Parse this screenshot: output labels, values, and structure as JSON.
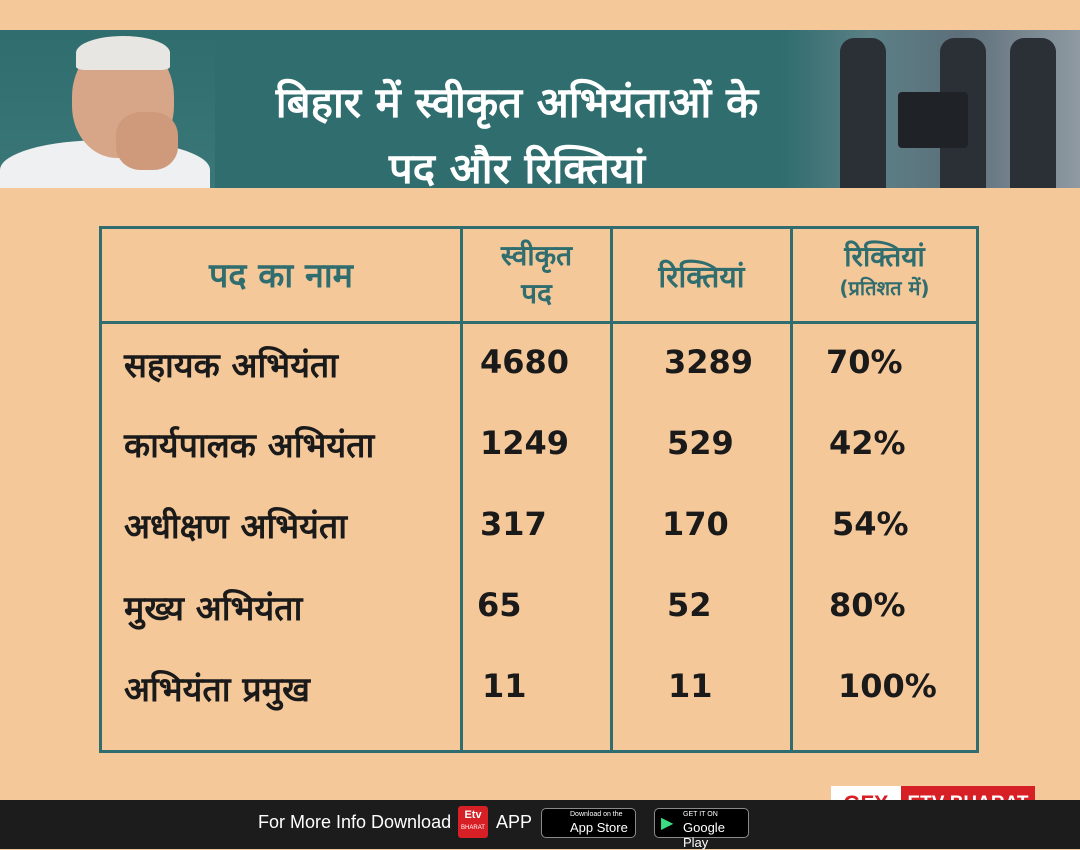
{
  "title": {
    "line1": "बिहार में स्वीकृत अभियंताओं के",
    "line2": "पद और रिक्तियां"
  },
  "table": {
    "headers": {
      "post_name": "पद का नाम",
      "sanctioned_line1": "स्वीकृत",
      "sanctioned_line2": "पद",
      "vacancies": "रिक्तियां",
      "vacancy_pct_line1": "रिक्तियां",
      "vacancy_pct_line2": "(प्रतिशत में)"
    },
    "rows": [
      {
        "post": "सहायक अभियंता",
        "sanctioned": "4680",
        "vacancies": "3289",
        "percent": "70%"
      },
      {
        "post": "कार्यपालक अभियंता",
        "sanctioned": "1249",
        "vacancies": "529",
        "percent": "42%"
      },
      {
        "post": "अधीक्षण अभियंता",
        "sanctioned": "317",
        "vacancies": "170",
        "percent": "54%"
      },
      {
        "post": "मुख्य अभियंता",
        "sanctioned": "65",
        "vacancies": "52",
        "percent": "80%"
      },
      {
        "post": "अभियंता प्रमुख",
        "sanctioned": "11",
        "vacancies": "11",
        "percent": "100%"
      }
    ]
  },
  "footer": {
    "info_text": "For More Info Download",
    "etv_logo_text": "Etv",
    "etv_logo_sub": "BHARAT",
    "app_text": "APP",
    "app_store": {
      "small": "Download on the",
      "big": "App Store"
    },
    "google_play": {
      "small": "GET IT ON",
      "big": "Google Play"
    }
  },
  "branding": {
    "gfx": "GFX",
    "etv_bharat": "ETV BHARAT"
  },
  "colors": {
    "background": "#f5c89a",
    "teal": "#2f6d6e",
    "brand_red": "#d71f26"
  }
}
